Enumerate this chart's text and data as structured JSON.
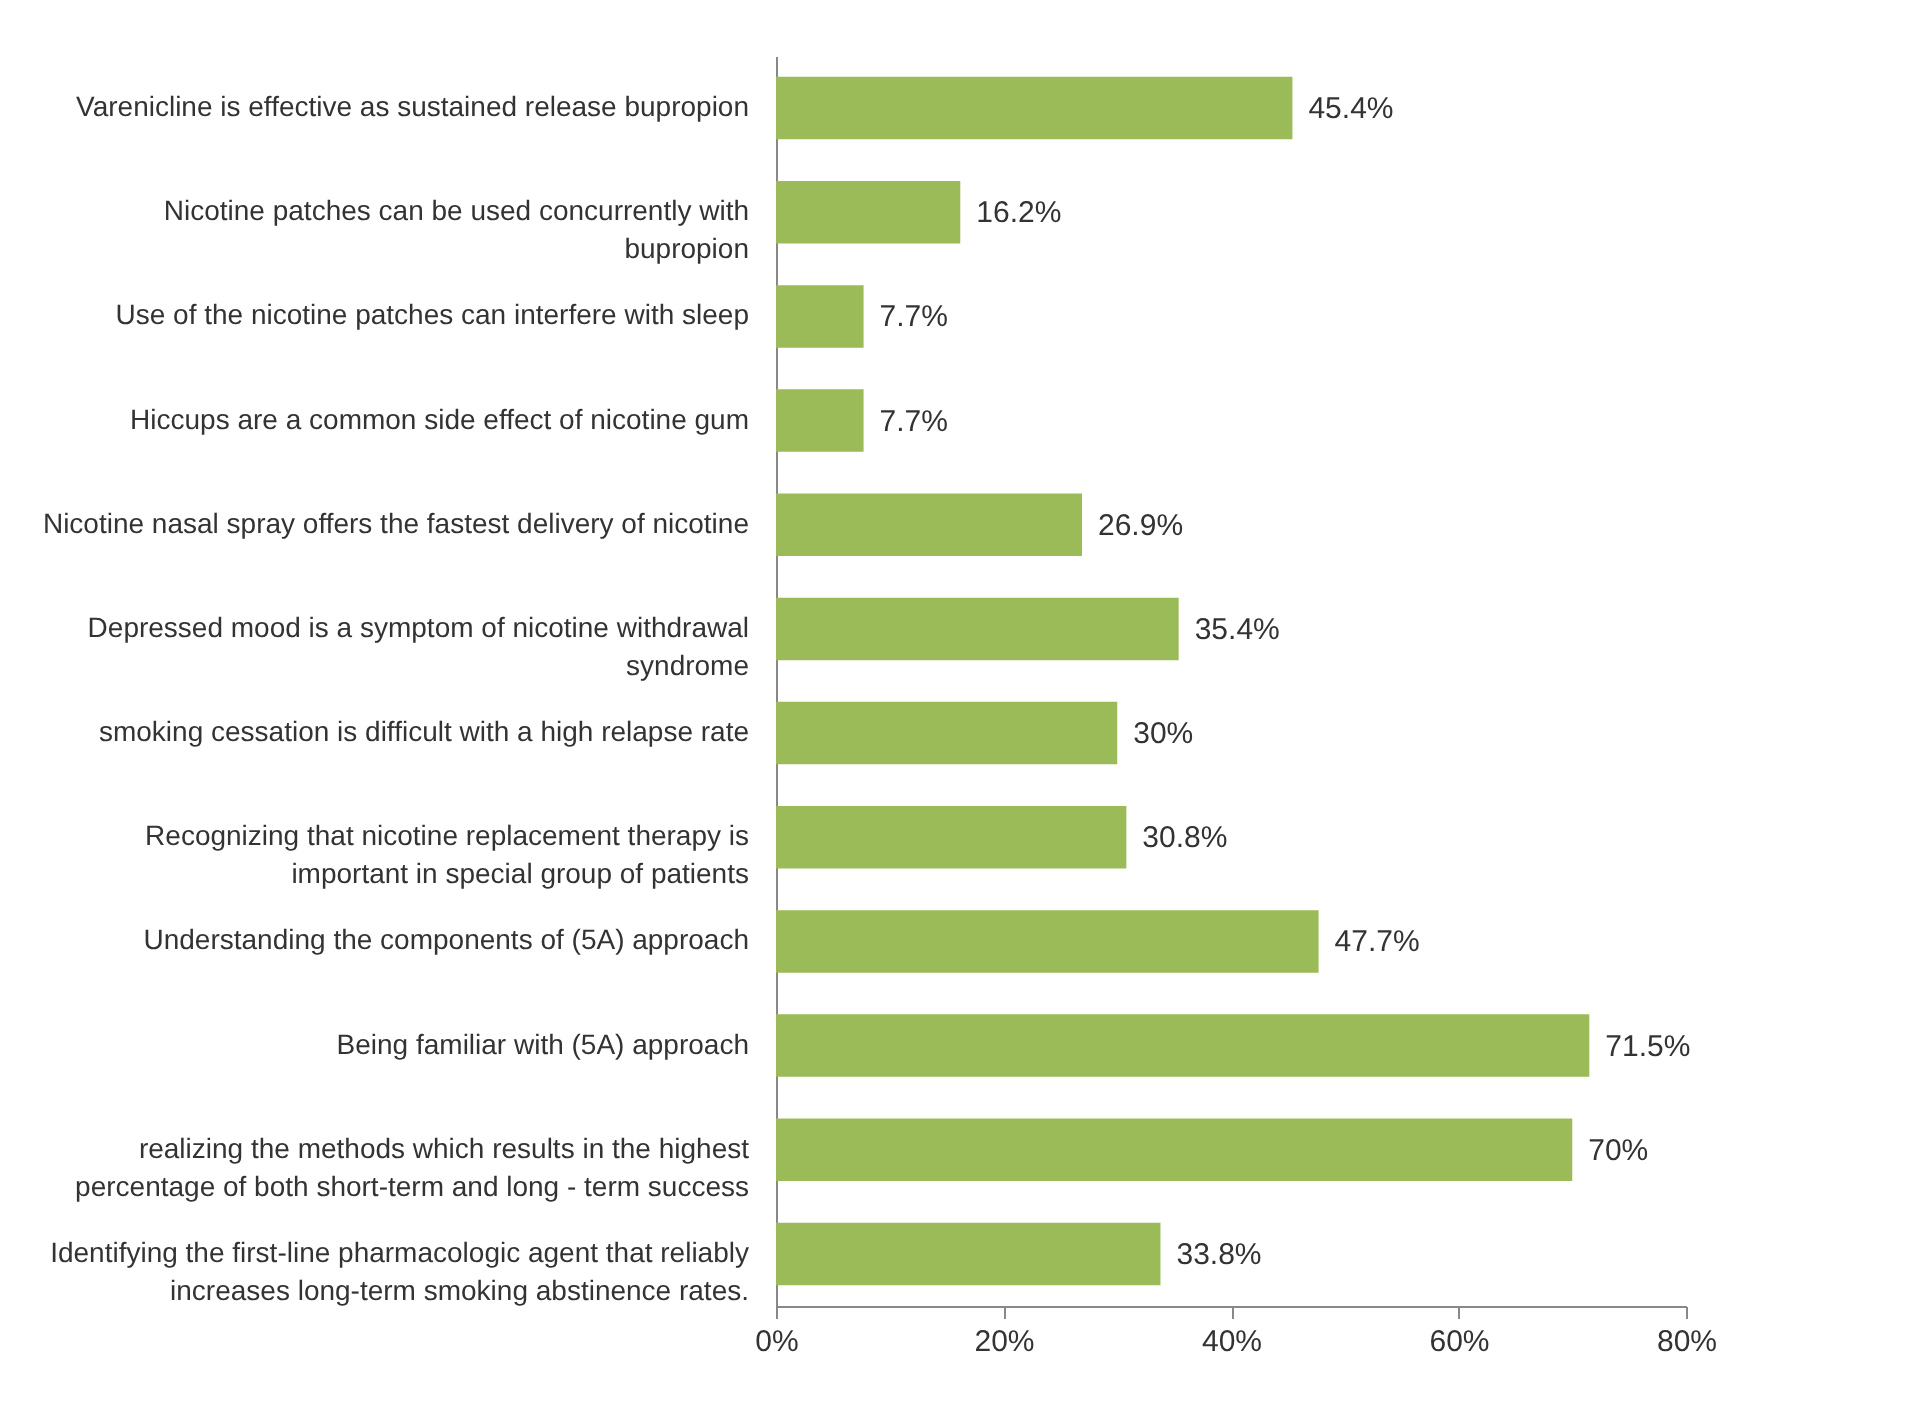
{
  "chart_data": {
    "type": "bar",
    "orientation": "horizontal",
    "categories": [
      "Varenicline is effective as sustained release bupropion",
      "Nicotine patches can be used concurrently with\nbupropion",
      "Use of the nicotine patches can interfere with sleep",
      "Hiccups are a common side effect of nicotine gum",
      "Nicotine nasal spray offers the fastest delivery of nicotine",
      "Depressed mood is a symptom of nicotine withdrawal\nsyndrome",
      "smoking cessation is difficult with a high relapse rate",
      "Recognizing that nicotine replacement therapy is\nimportant in  special group of patients",
      "Understanding the components of (5A) approach",
      "Being familiar with (5A) approach",
      "realizing the  methods which results in the highest\npercentage of both short-term and long - term success",
      "Identifying the first-line pharmacologic agent that reliably\nincreases long-term smoking abstinence rates."
    ],
    "values": [
      45.4,
      16.2,
      7.7,
      7.7,
      26.9,
      35.4,
      30,
      30.8,
      47.7,
      71.5,
      70,
      33.8
    ],
    "value_labels": [
      "45.4%",
      "16.2%",
      "7.7%",
      "7.7%",
      "26.9%",
      "35.4%",
      "30%",
      "30.8%",
      "47.7%",
      "71.5%",
      "70%",
      "33.8%"
    ],
    "color": "#9bbb59",
    "xlim": [
      0,
      80
    ],
    "xticks": [
      {
        "value": 0,
        "label": "0%"
      },
      {
        "value": 20,
        "label": "20%"
      },
      {
        "value": 40,
        "label": "40%"
      },
      {
        "value": 60,
        "label": "60%"
      },
      {
        "value": 80,
        "label": "80%"
      }
    ],
    "grid": false
  }
}
